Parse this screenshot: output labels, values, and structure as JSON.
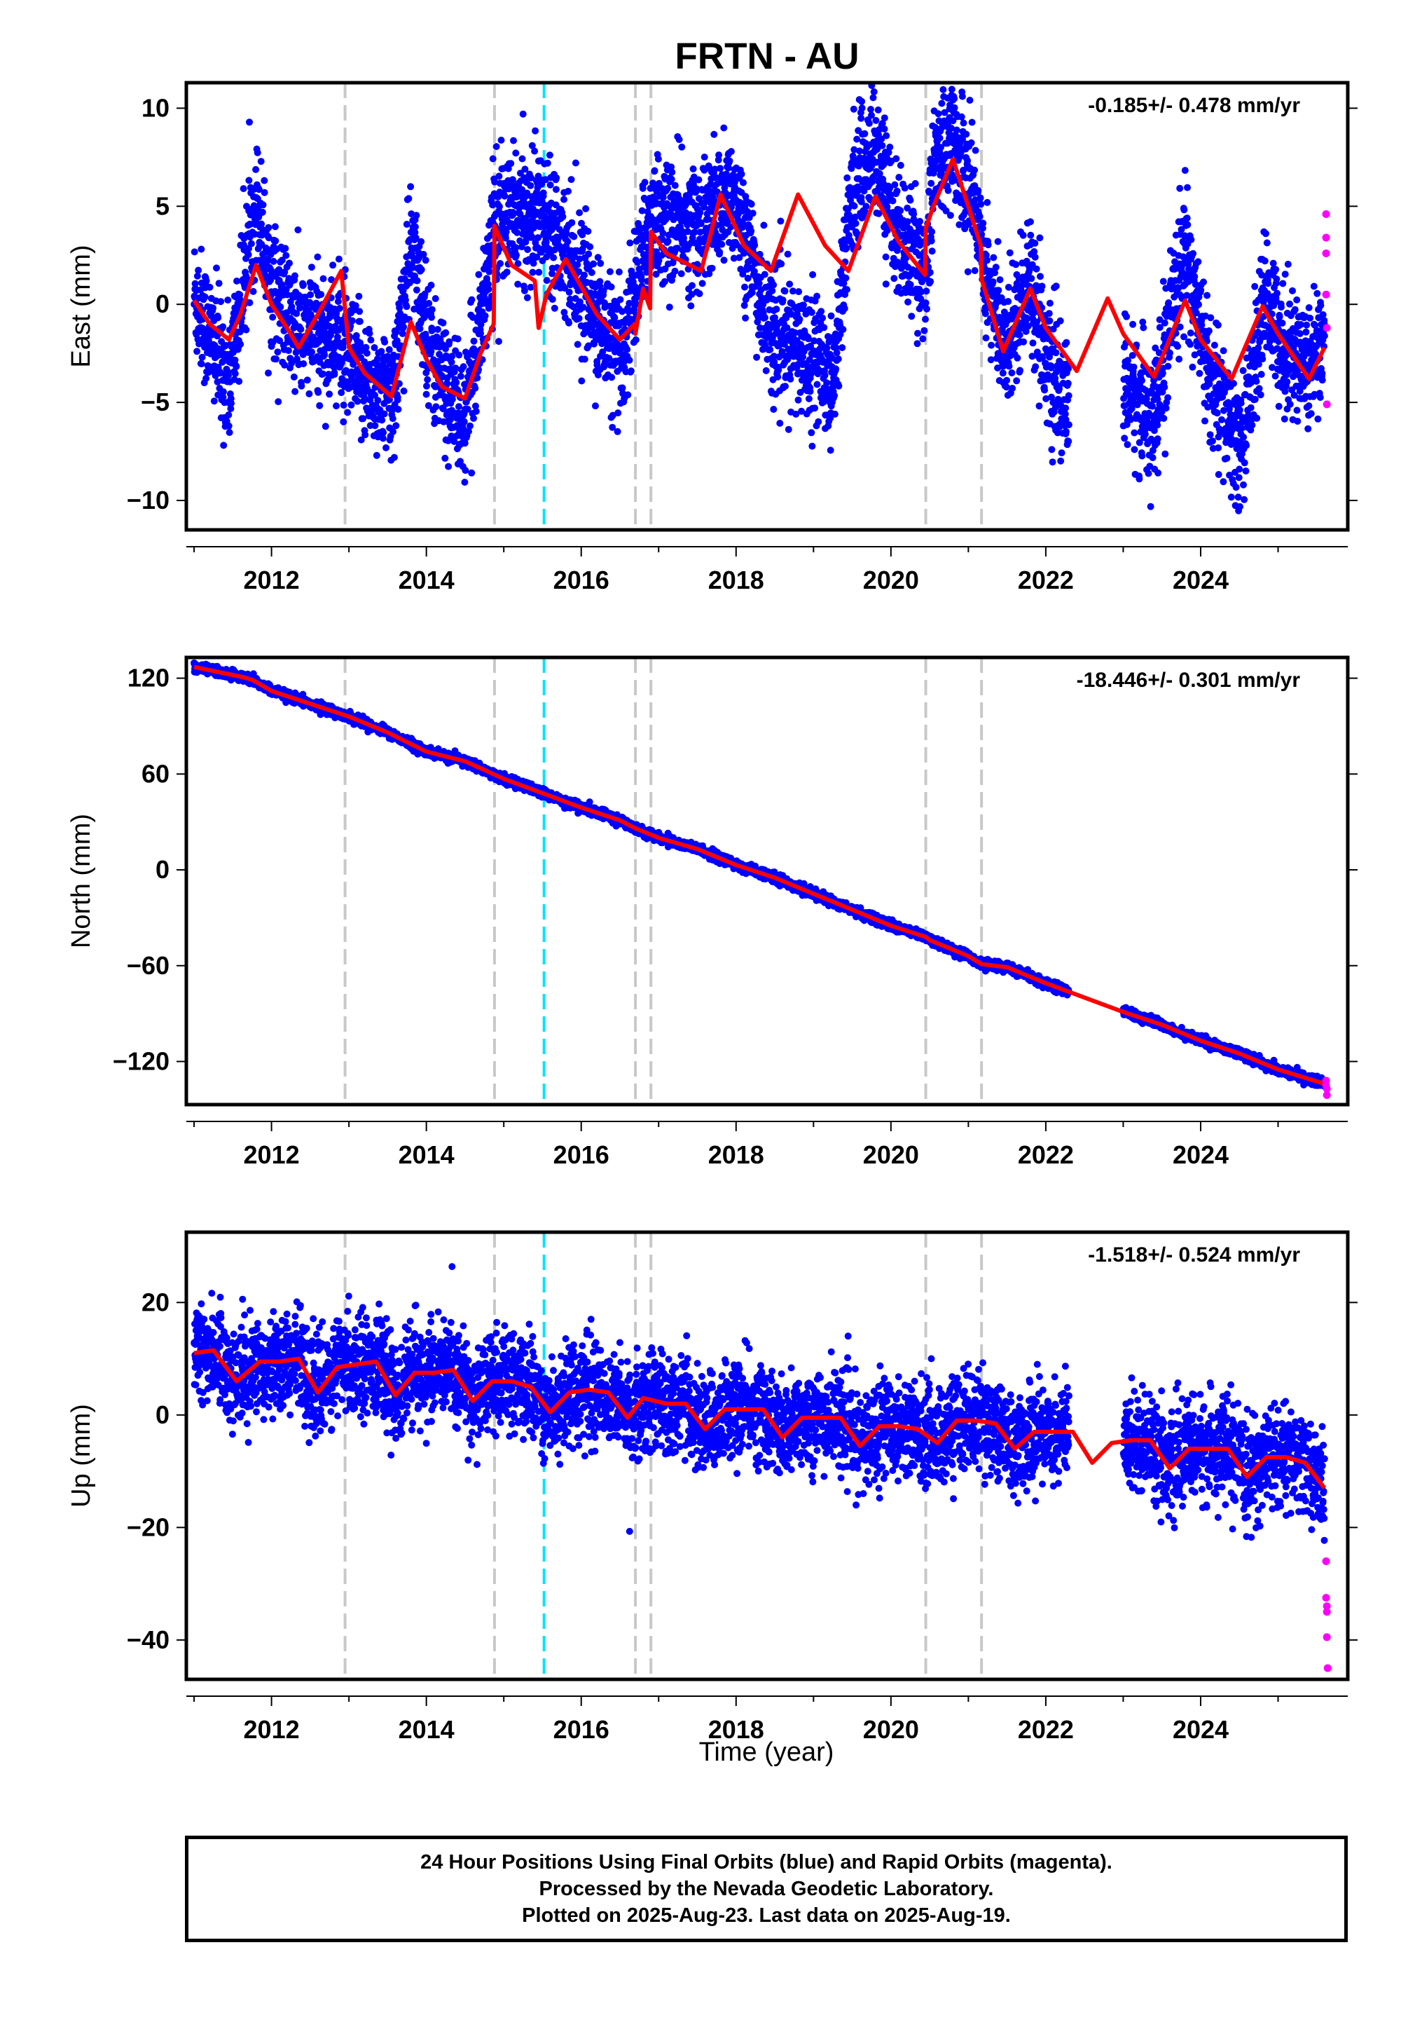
{
  "title": "FRTN - AU",
  "xlabel": "Time (year)",
  "colors": {
    "final_orbits": "#0000ff",
    "rapid_orbits": "#ff00ff",
    "model": "#ff0000",
    "offset_line": "#c8c8c8",
    "equipment_change": "#00e5ff"
  },
  "footer": {
    "line1": "24 Hour Positions Using Final Orbits (blue) and Rapid Orbits (magenta).",
    "line2": "Processed by the Nevada Geodetic Laboratory.",
    "line3": "Plotted on 2025-Aug-23. Last data on 2025-Aug-19."
  },
  "chart_data": [
    {
      "type": "scatter",
      "component": "east",
      "ylabel": "East (mm)",
      "rate_text": "-0.185+/- 0.478 mm/yr",
      "xlim": [
        2010.9,
        2025.9
      ],
      "ylim": [
        -11.5,
        11.3
      ],
      "xticks": [
        2012,
        2014,
        2016,
        2018,
        2020,
        2022,
        2024
      ],
      "yticks": [
        -10,
        -5,
        0,
        5,
        10
      ],
      "yticklabels": [
        "−10",
        "−5",
        "0",
        "5",
        "10"
      ],
      "vlines_gray": [
        2012.95,
        2014.88,
        2016.7,
        2016.9,
        2020.45,
        2021.17
      ],
      "vlines_cyan": [
        2015.52
      ],
      "model_x": [
        2011.0,
        2011.2,
        2011.45,
        2011.6,
        2011.8,
        2012.0,
        2012.2,
        2012.35,
        2012.6,
        2012.9,
        2013.0,
        2013.2,
        2013.55,
        2013.8,
        2014.0,
        2014.2,
        2014.5,
        2014.7,
        2014.87,
        2014.88,
        2015.1,
        2015.4,
        2015.45,
        2015.55,
        2015.8,
        2016.2,
        2016.5,
        2016.69,
        2016.7,
        2016.8,
        2016.89,
        2016.9,
        2017.1,
        2017.55,
        2017.8,
        2018.1,
        2018.45,
        2018.8,
        2019.15,
        2019.45,
        2019.8,
        2020.1,
        2020.44,
        2020.45,
        2020.55,
        2020.8,
        2021.0,
        2021.16,
        2021.17,
        2021.45,
        2021.8,
        2022.0,
        2022.4,
        2022.8,
        2023.0,
        2023.4,
        2023.8,
        2024.0,
        2024.4,
        2024.8,
        2025.0,
        2025.4,
        2025.6
      ],
      "model_y": [
        0.2,
        -1.0,
        -1.8,
        -0.5,
        2.0,
        0.0,
        -1.2,
        -2.2,
        -0.5,
        1.7,
        -2.2,
        -3.5,
        -4.7,
        -0.9,
        -2.8,
        -4.2,
        -4.8,
        -2.5,
        -1.0,
        4.0,
        2.0,
        1.2,
        -1.2,
        0.5,
        2.3,
        -0.5,
        -1.8,
        -1.0,
        -1.5,
        0.8,
        -0.2,
        3.7,
        2.6,
        1.7,
        5.6,
        3.0,
        1.7,
        5.6,
        3.0,
        1.7,
        5.5,
        3.2,
        1.5,
        3.9,
        5.0,
        7.4,
        5.0,
        3.0,
        1.3,
        -2.4,
        0.8,
        -1.2,
        -3.4,
        0.3,
        -1.5,
        -3.7,
        0.2,
        -1.8,
        -3.8,
        -0.1,
        -1.5,
        -3.8,
        -2.2
      ],
      "anchor_x": [
        2011.0,
        2011.2,
        2011.45,
        2011.8,
        2012.0,
        2012.35,
        2012.6,
        2012.9,
        2013.0,
        2013.55,
        2013.8,
        2014.1,
        2014.5,
        2014.88,
        2015.1,
        2015.6,
        2015.9,
        2016.5,
        2016.9,
        2017.2,
        2017.55,
        2018.0,
        2018.4,
        2018.6,
        2019.0,
        2019.25,
        2019.5,
        2019.8,
        2020.1,
        2020.45,
        2020.55,
        2020.8,
        2021.1,
        2021.17,
        2021.45,
        2021.8,
        2022.05,
        2022.3,
        2023.0,
        2023.4,
        2023.8,
        2024.1,
        2024.5,
        2024.85,
        2025.05,
        2025.4,
        2025.6
      ],
      "anchor_y": [
        0.5,
        -1.5,
        -4.0,
        5.5,
        1.0,
        -1.5,
        -1.5,
        -2.0,
        -3.0,
        -5.0,
        3.0,
        -3.0,
        -6.0,
        4.0,
        4.5,
        4.5,
        2.0,
        -3.0,
        4.5,
        4.0,
        4.0,
        5.5,
        -1.0,
        -2.0,
        -2.5,
        -4.0,
        6.0,
        8.0,
        3.5,
        1.5,
        7.0,
        8.5,
        5.0,
        3.0,
        -2.5,
        1.5,
        -3.5,
        -5.5,
        -4.0,
        -6.0,
        3.0,
        -3.5,
        -7.5,
        0.5,
        -2.0,
        -3.0,
        -1.5
      ],
      "gaps": [
        [
          2022.3,
          2023.0
        ]
      ],
      "scatter_sd": 1.6,
      "rapid_x": [
        2025.62,
        2025.62,
        2025.62,
        2025.62,
        2025.63,
        2025.63
      ],
      "rapid_y": [
        4.6,
        3.4,
        2.6,
        0.5,
        -1.2,
        -5.1
      ]
    },
    {
      "type": "scatter",
      "component": "north",
      "ylabel": "North (mm)",
      "rate_text": "-18.446+/- 0.301 mm/yr",
      "xlim": [
        2010.9,
        2025.9
      ],
      "ylim": [
        -147,
        133
      ],
      "xticks": [
        2012,
        2014,
        2016,
        2018,
        2020,
        2022,
        2024
      ],
      "yticks": [
        -120,
        -60,
        0,
        60,
        120
      ],
      "yticklabels": [
        "−120",
        "−60",
        "0",
        "60",
        "120"
      ],
      "vlines_gray": [
        2012.95,
        2014.88,
        2016.7,
        2016.9,
        2020.45,
        2021.17
      ],
      "vlines_cyan": [
        2015.52
      ],
      "model_x": [
        2011.0,
        2011.3,
        2011.6,
        2011.75,
        2012.0,
        2012.5,
        2013.0,
        2013.5,
        2014.0,
        2014.5,
        2015.0,
        2015.5,
        2016.0,
        2016.5,
        2016.7,
        2016.9,
        2017.0,
        2017.5,
        2018.0,
        2018.5,
        2019.0,
        2019.5,
        2020.0,
        2020.45,
        2020.5,
        2021.0,
        2021.17,
        2021.5,
        2022.0,
        2022.5,
        2023.0,
        2023.5,
        2024.0,
        2024.5,
        2025.0,
        2025.6
      ],
      "model_y": [
        127,
        124,
        121,
        119,
        112,
        104,
        96,
        86,
        74,
        68,
        57,
        48,
        39,
        31,
        26,
        22,
        20,
        13,
        3,
        -5,
        -15,
        -25,
        -35,
        -42,
        -44,
        -54,
        -59,
        -61,
        -71,
        -80,
        -89,
        -97,
        -107,
        -115,
        -125,
        -134
      ],
      "anchor_x": [
        2011.0,
        2025.6
      ],
      "anchor_y": [
        127,
        -136
      ],
      "gaps": [
        [
          2022.3,
          2023.0
        ]
      ],
      "scatter_sd": 1.4,
      "rapid_x": [
        2025.62,
        2025.62,
        2025.63,
        2025.63
      ],
      "rapid_y": [
        -132,
        -135,
        -137,
        -141
      ]
    },
    {
      "type": "scatter",
      "component": "up",
      "ylabel": "Up (mm)",
      "rate_text": "-1.518+/- 0.524 mm/yr",
      "xlim": [
        2010.9,
        2025.9
      ],
      "ylim": [
        -47,
        32.5
      ],
      "xticks": [
        2012,
        2014,
        2016,
        2018,
        2020,
        2022,
        2024
      ],
      "yticks": [
        -40,
        -20,
        0,
        20
      ],
      "yticklabels": [
        "−40",
        "−20",
        "0",
        "20"
      ],
      "vlines_gray": [
        2012.95,
        2014.88,
        2016.7,
        2016.9,
        2020.45,
        2021.17
      ],
      "vlines_cyan": [
        2015.52
      ],
      "model_x": [
        2011.0,
        2011.25,
        2011.55,
        2011.85,
        2012.1,
        2012.35,
        2012.6,
        2012.85,
        2013.1,
        2013.35,
        2013.6,
        2013.85,
        2014.1,
        2014.35,
        2014.6,
        2014.85,
        2015.1,
        2015.35,
        2015.6,
        2015.85,
        2016.1,
        2016.35,
        2016.6,
        2016.8,
        2017.1,
        2017.35,
        2017.6,
        2017.85,
        2018.1,
        2018.35,
        2018.6,
        2018.85,
        2019.1,
        2019.35,
        2019.6,
        2019.85,
        2020.1,
        2020.35,
        2020.6,
        2020.85,
        2021.1,
        2021.35,
        2021.6,
        2021.85,
        2022.1,
        2022.35,
        2022.6,
        2022.85,
        2023.1,
        2023.35,
        2023.6,
        2023.85,
        2024.1,
        2024.35,
        2024.6,
        2024.85,
        2025.1,
        2025.35,
        2025.6
      ],
      "model_y": [
        11,
        11.5,
        6,
        9.5,
        9.5,
        10,
        4,
        8.5,
        9,
        9.5,
        3.5,
        7.5,
        7.5,
        8,
        2.5,
        6,
        6,
        5,
        0.5,
        4,
        4.5,
        4,
        -0.5,
        3,
        2,
        2,
        -2.5,
        1,
        1,
        1,
        -4,
        -0.5,
        -0.5,
        -0.5,
        -5.5,
        -2,
        -2,
        -2.5,
        -5,
        -1,
        -1,
        -1.5,
        -6,
        -3,
        -3,
        -3,
        -8.5,
        -5,
        -4.5,
        -4.5,
        -9.5,
        -6,
        -6,
        -6,
        -11,
        -7.5,
        -7.5,
        -8.5,
        -13
      ],
      "anchor_x": [
        2011.0,
        2025.6
      ],
      "anchor_y": [
        11,
        -13
      ],
      "gaps": [
        [
          2022.3,
          2023.0
        ]
      ],
      "scatter_sd": 4.3,
      "rapid_x": [
        2025.62,
        2025.62,
        2025.63,
        2025.63,
        2025.63,
        2025.64
      ],
      "rapid_y": [
        -26,
        -32.5,
        -34,
        -35,
        -39.5,
        -45
      ]
    }
  ]
}
